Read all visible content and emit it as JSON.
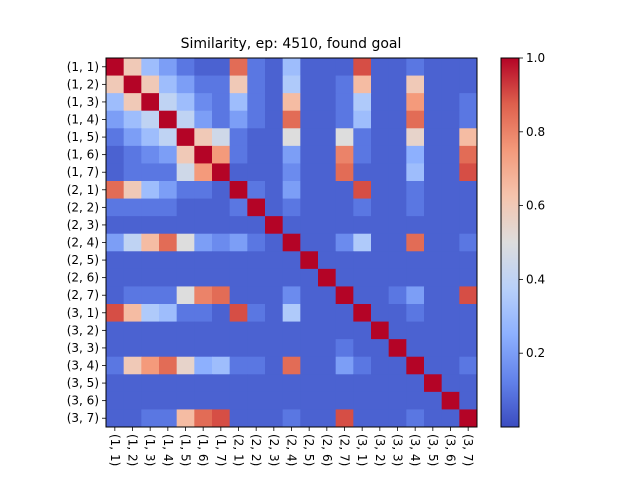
{
  "chart_data": {
    "type": "heatmap",
    "title": "Similarity, ep: 4510, found goal",
    "labels": [
      "(1, 1)",
      "(1, 2)",
      "(1, 3)",
      "(1, 4)",
      "(1, 5)",
      "(1, 6)",
      "(1, 7)",
      "(2, 1)",
      "(2, 2)",
      "(2, 3)",
      "(2, 4)",
      "(2, 5)",
      "(2, 6)",
      "(2, 7)",
      "(3, 1)",
      "(3, 2)",
      "(3, 3)",
      "(3, 4)",
      "(3, 5)",
      "(3, 6)",
      "(3, 7)"
    ],
    "colormap": "coolwarm",
    "colorbar": {
      "min": 0.0,
      "max": 1.0,
      "ticks": [
        "0.2",
        "0.4",
        "0.6",
        "0.8",
        "1.0"
      ],
      "tick_values": [
        0.2,
        0.4,
        0.6,
        0.8,
        1.0
      ]
    },
    "matrix": [
      [
        1.0,
        0.6,
        0.3,
        0.2,
        0.1,
        0.05,
        0.05,
        0.85,
        0.1,
        0.05,
        0.3,
        0.05,
        0.05,
        0.05,
        0.9,
        0.05,
        0.05,
        0.1,
        0.05,
        0.05,
        0.05
      ],
      [
        0.6,
        1.0,
        0.6,
        0.3,
        0.2,
        0.1,
        0.1,
        0.6,
        0.1,
        0.05,
        0.35,
        0.05,
        0.05,
        0.1,
        0.65,
        0.05,
        0.05,
        0.6,
        0.05,
        0.05,
        0.05
      ],
      [
        0.3,
        0.6,
        1.0,
        0.4,
        0.3,
        0.15,
        0.1,
        0.3,
        0.1,
        0.05,
        0.65,
        0.05,
        0.05,
        0.1,
        0.35,
        0.05,
        0.05,
        0.75,
        0.05,
        0.05,
        0.1
      ],
      [
        0.2,
        0.3,
        0.4,
        1.0,
        0.4,
        0.2,
        0.1,
        0.2,
        0.1,
        0.05,
        0.85,
        0.05,
        0.05,
        0.1,
        0.3,
        0.05,
        0.05,
        0.85,
        0.05,
        0.05,
        0.1
      ],
      [
        0.1,
        0.2,
        0.3,
        0.4,
        1.0,
        0.6,
        0.45,
        0.1,
        0.05,
        0.05,
        0.5,
        0.05,
        0.05,
        0.5,
        0.1,
        0.05,
        0.05,
        0.55,
        0.05,
        0.05,
        0.65
      ],
      [
        0.05,
        0.1,
        0.15,
        0.2,
        0.6,
        1.0,
        0.75,
        0.1,
        0.05,
        0.05,
        0.2,
        0.05,
        0.05,
        0.8,
        0.1,
        0.05,
        0.05,
        0.25,
        0.05,
        0.05,
        0.85
      ],
      [
        0.05,
        0.1,
        0.1,
        0.1,
        0.45,
        0.75,
        1.0,
        0.05,
        0.05,
        0.05,
        0.15,
        0.05,
        0.05,
        0.85,
        0.05,
        0.05,
        0.05,
        0.3,
        0.05,
        0.05,
        0.9
      ],
      [
        0.85,
        0.6,
        0.3,
        0.2,
        0.1,
        0.1,
        0.05,
        1.0,
        0.1,
        0.05,
        0.2,
        0.05,
        0.05,
        0.05,
        0.9,
        0.05,
        0.05,
        0.1,
        0.05,
        0.05,
        0.05
      ],
      [
        0.1,
        0.1,
        0.1,
        0.1,
        0.05,
        0.05,
        0.05,
        0.1,
        1.0,
        0.05,
        0.1,
        0.05,
        0.05,
        0.05,
        0.1,
        0.05,
        0.05,
        0.1,
        0.05,
        0.05,
        0.05
      ],
      [
        0.05,
        0.05,
        0.05,
        0.05,
        0.05,
        0.05,
        0.05,
        0.05,
        0.05,
        1.0,
        0.05,
        0.05,
        0.05,
        0.05,
        0.05,
        0.05,
        0.05,
        0.05,
        0.05,
        0.05,
        0.05
      ],
      [
        0.2,
        0.4,
        0.65,
        0.85,
        0.5,
        0.2,
        0.15,
        0.2,
        0.1,
        0.05,
        1.0,
        0.05,
        0.05,
        0.15,
        0.35,
        0.05,
        0.05,
        0.85,
        0.05,
        0.05,
        0.1
      ],
      [
        0.05,
        0.05,
        0.05,
        0.05,
        0.05,
        0.05,
        0.05,
        0.05,
        0.05,
        0.05,
        0.05,
        1.0,
        0.05,
        0.05,
        0.05,
        0.05,
        0.05,
        0.05,
        0.05,
        0.05,
        0.05
      ],
      [
        0.05,
        0.05,
        0.05,
        0.05,
        0.05,
        0.05,
        0.05,
        0.05,
        0.05,
        0.05,
        0.05,
        0.05,
        1.0,
        0.05,
        0.05,
        0.05,
        0.05,
        0.05,
        0.05,
        0.05,
        0.05
      ],
      [
        0.05,
        0.1,
        0.1,
        0.1,
        0.5,
        0.8,
        0.85,
        0.05,
        0.05,
        0.05,
        0.15,
        0.05,
        0.05,
        1.0,
        0.05,
        0.05,
        0.1,
        0.2,
        0.05,
        0.05,
        0.9
      ],
      [
        0.9,
        0.65,
        0.35,
        0.3,
        0.1,
        0.1,
        0.05,
        0.9,
        0.1,
        0.05,
        0.35,
        0.05,
        0.05,
        0.05,
        1.0,
        0.05,
        0.05,
        0.1,
        0.05,
        0.05,
        0.05
      ],
      [
        0.05,
        0.05,
        0.05,
        0.05,
        0.05,
        0.05,
        0.05,
        0.05,
        0.05,
        0.05,
        0.05,
        0.05,
        0.05,
        0.05,
        0.05,
        1.0,
        0.05,
        0.05,
        0.05,
        0.05,
        0.05
      ],
      [
        0.05,
        0.05,
        0.05,
        0.05,
        0.05,
        0.05,
        0.05,
        0.05,
        0.05,
        0.05,
        0.05,
        0.05,
        0.05,
        0.1,
        0.05,
        0.05,
        1.0,
        0.05,
        0.05,
        0.05,
        0.05
      ],
      [
        0.1,
        0.6,
        0.75,
        0.85,
        0.55,
        0.25,
        0.3,
        0.1,
        0.1,
        0.05,
        0.85,
        0.05,
        0.05,
        0.2,
        0.1,
        0.05,
        0.05,
        1.0,
        0.05,
        0.05,
        0.1
      ],
      [
        0.05,
        0.05,
        0.05,
        0.05,
        0.05,
        0.05,
        0.05,
        0.05,
        0.05,
        0.05,
        0.05,
        0.05,
        0.05,
        0.05,
        0.05,
        0.05,
        0.05,
        0.05,
        1.0,
        0.05,
        0.05
      ],
      [
        0.05,
        0.05,
        0.05,
        0.05,
        0.05,
        0.05,
        0.05,
        0.05,
        0.05,
        0.05,
        0.05,
        0.05,
        0.05,
        0.05,
        0.05,
        0.05,
        0.05,
        0.05,
        0.05,
        1.0,
        0.05
      ],
      [
        0.05,
        0.05,
        0.1,
        0.1,
        0.65,
        0.85,
        0.9,
        0.05,
        0.05,
        0.05,
        0.1,
        0.05,
        0.05,
        0.9,
        0.05,
        0.05,
        0.05,
        0.1,
        0.05,
        0.05,
        1.0
      ]
    ]
  }
}
